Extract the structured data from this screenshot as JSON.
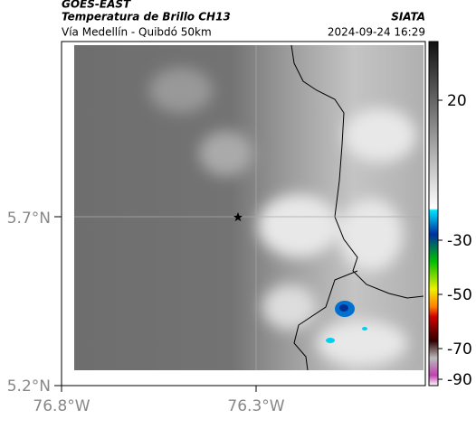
{
  "header": {
    "source": "GOES-EAST",
    "product": "Temperatura de Brillo CH13",
    "agency": "SIATA",
    "region": "Vía Medellín - Quibdó 50km",
    "datetime": "2024-09-24 16:29"
  },
  "map": {
    "lat_ticks": [
      "5.7°N",
      "5.2°N"
    ],
    "lon_ticks": [
      "76.8°W",
      "76.3°W"
    ]
  },
  "colorbar": {
    "ticks": [
      "20",
      "-30",
      "-50",
      "-70",
      "-90"
    ]
  }
}
